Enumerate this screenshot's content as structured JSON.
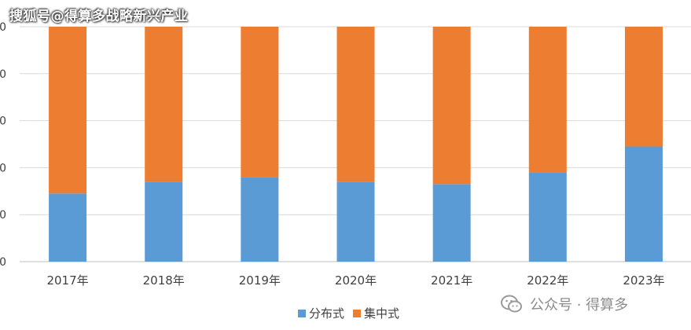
{
  "watermarks": {
    "top": "搜狐号@得算多战略新兴产业",
    "bottom": "公众号 · 得算多"
  },
  "colors": {
    "series1": "#5B9BD5",
    "series2": "#ED7D31",
    "grid": "#d9d9d9",
    "axis": "#bfbfbf",
    "text": "#404040"
  },
  "chart_data": {
    "type": "bar",
    "stacked": true,
    "normalized": true,
    "categories": [
      "2017年",
      "2018年",
      "2019年",
      "2020年",
      "2021年",
      "2022年",
      "2023年"
    ],
    "series": [
      {
        "name": "分布式",
        "values": [
          29,
          34,
          36,
          34,
          33,
          38,
          49
        ]
      },
      {
        "name": "集中式",
        "values": [
          71,
          66,
          64,
          66,
          67,
          62,
          51
        ]
      }
    ],
    "ylim": [
      0,
      100
    ],
    "y_ticks": [
      "0",
      "0",
      "0",
      "0",
      "0",
      "0"
    ],
    "legend": "bottom",
    "grid": true
  }
}
